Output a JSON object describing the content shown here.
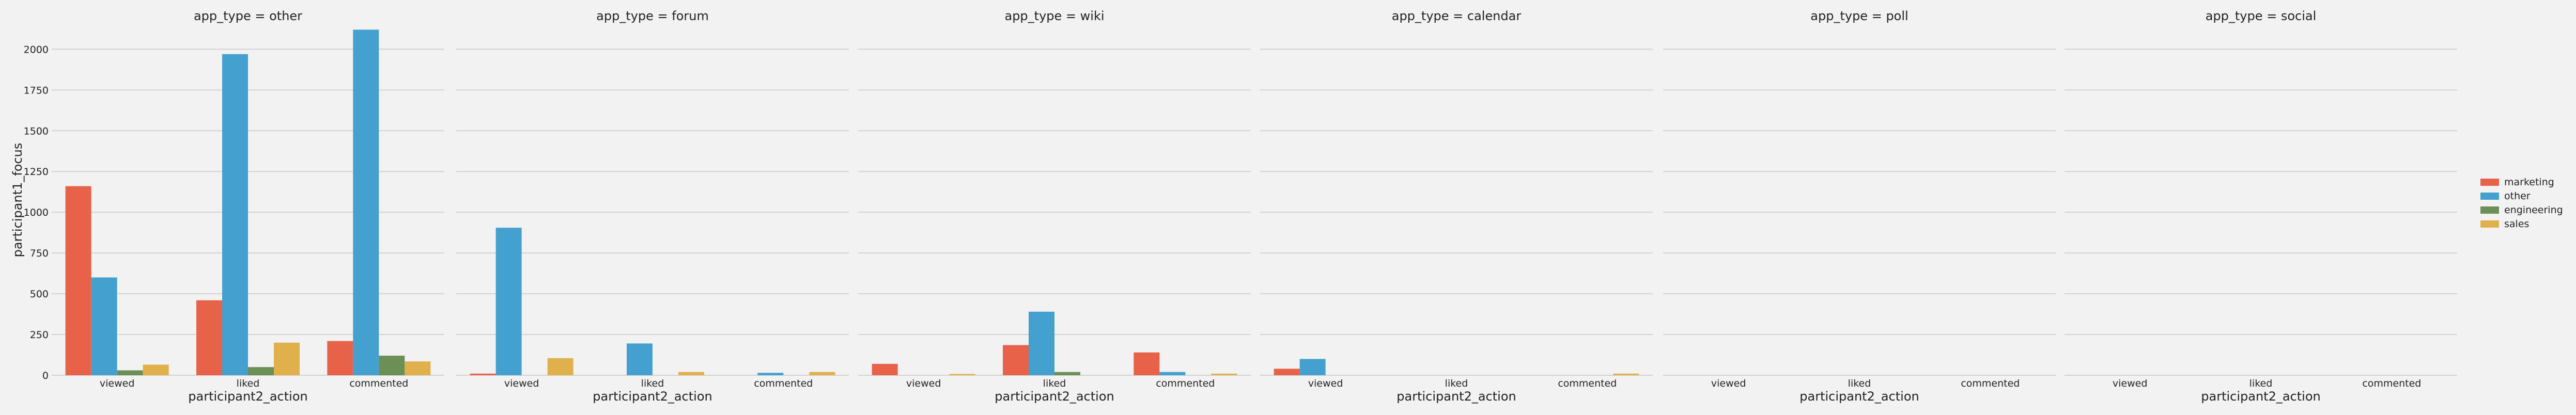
{
  "chart_data": {
    "type": "bar",
    "layout": "faceted",
    "facet_variable": "app_type",
    "facets": [
      {
        "title": "app_type = other"
      },
      {
        "title": "app_type = forum"
      },
      {
        "title": "app_type = wiki"
      },
      {
        "title": "app_type = calendar"
      },
      {
        "title": "app_type = poll"
      },
      {
        "title": "app_type = social"
      }
    ],
    "categories": [
      "viewed",
      "liked",
      "commented"
    ],
    "xlabel": "participant2_action",
    "ylabel": "participant1_focus",
    "ylim": [
      0,
      2150
    ],
    "yticks": [
      0,
      250,
      500,
      750,
      1000,
      1250,
      1500,
      1750,
      2000
    ],
    "grid": true,
    "legend_position": "right",
    "series": [
      {
        "name": "marketing",
        "color": "#e8624a",
        "values": [
          [
            1160,
            460,
            210
          ],
          [
            10,
            0,
            0
          ],
          [
            70,
            185,
            140
          ],
          [
            40,
            0,
            0
          ],
          [
            0,
            0,
            0
          ],
          [
            0,
            0,
            0
          ]
        ]
      },
      {
        "name": "other",
        "color": "#44a0cf",
        "values": [
          [
            600,
            1970,
            2120
          ],
          [
            905,
            195,
            15
          ],
          [
            0,
            390,
            20
          ],
          [
            100,
            0,
            0
          ],
          [
            0,
            0,
            0
          ],
          [
            0,
            0,
            0
          ]
        ]
      },
      {
        "name": "engineering",
        "color": "#6b8f55",
        "values": [
          [
            30,
            50,
            120
          ],
          [
            0,
            0,
            0
          ],
          [
            0,
            20,
            0
          ],
          [
            0,
            0,
            0
          ],
          [
            0,
            0,
            0
          ],
          [
            0,
            0,
            0
          ]
        ]
      },
      {
        "name": "sales",
        "color": "#e0b04d",
        "values": [
          [
            65,
            200,
            85
          ],
          [
            105,
            20,
            20
          ],
          [
            8,
            0,
            10
          ],
          [
            0,
            0,
            10
          ],
          [
            0,
            0,
            0
          ],
          [
            0,
            0,
            0
          ]
        ]
      }
    ]
  }
}
